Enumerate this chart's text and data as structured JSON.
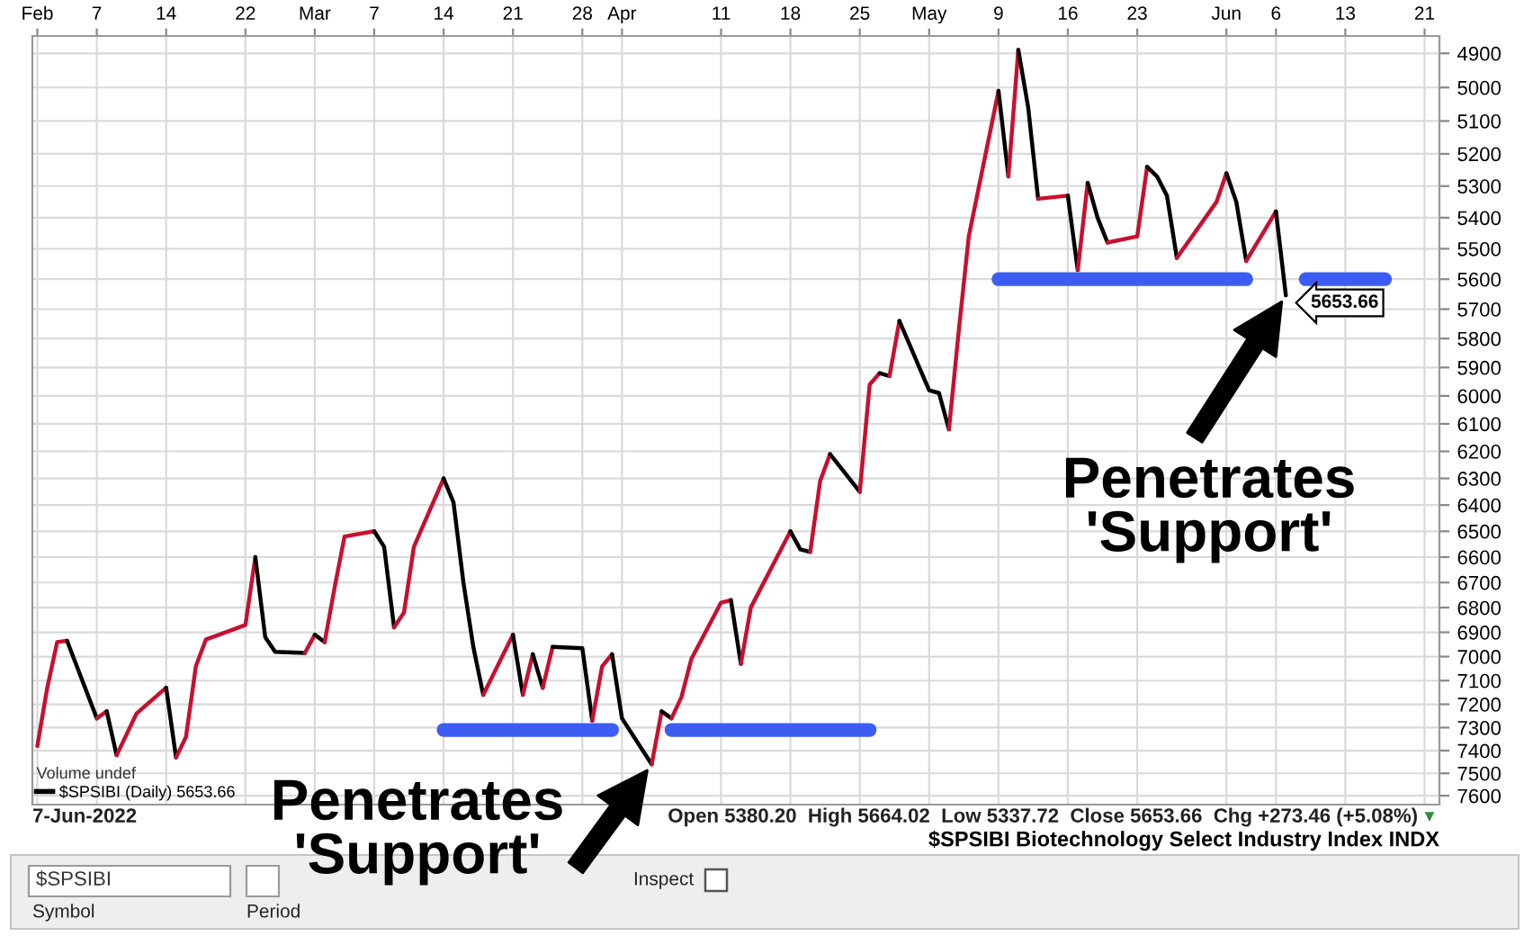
{
  "chart_data": {
    "type": "line",
    "title": "$SPSIBI Biotechnology Select Industry Index INDX",
    "xlim": [
      "2022-01-31T12:00",
      "2022-06-22T12:00"
    ],
    "xticks": [
      {
        "value": "2022-02-01",
        "label": "Feb"
      },
      {
        "value": "2022-02-07",
        "label": "7"
      },
      {
        "value": "2022-02-14",
        "label": "14"
      },
      {
        "value": "2022-02-22",
        "label": "22"
      },
      {
        "value": "2022-03-01",
        "label": "Mar"
      },
      {
        "value": "2022-03-07",
        "label": "7"
      },
      {
        "value": "2022-03-14",
        "label": "14"
      },
      {
        "value": "2022-03-21",
        "label": "21"
      },
      {
        "value": "2022-03-28",
        "label": "28"
      },
      {
        "value": "2022-04-01",
        "label": "Apr"
      },
      {
        "value": "2022-04-11",
        "label": "11"
      },
      {
        "value": "2022-04-18",
        "label": "18"
      },
      {
        "value": "2022-04-25",
        "label": "25"
      },
      {
        "value": "2022-05-02",
        "label": "May"
      },
      {
        "value": "2022-05-09",
        "label": "9"
      },
      {
        "value": "2022-05-16",
        "label": "16"
      },
      {
        "value": "2022-05-23",
        "label": "23"
      },
      {
        "value": "2022-06-01",
        "label": "Jun"
      },
      {
        "value": "2022-06-06",
        "label": "6"
      },
      {
        "value": "2022-06-13",
        "label": "13"
      },
      {
        "value": "2022-06-21",
        "label": "21"
      }
    ],
    "series": [
      {
        "color": "#c8102e",
        "x": [
          "2022-02-01",
          "2022-02-02",
          "2022-02-03",
          "2022-02-04"
        ],
        "values": [
          7380,
          7130,
          6940,
          6935
        ]
      },
      {
        "name": "$SPSIBI (Daily) 5653.66",
        "color": "#000000",
        "x": [
          "2022-02-04",
          "2022-02-07"
        ],
        "values": [
          6935,
          7260
        ]
      },
      {
        "color": "#c8102e",
        "x": [
          "2022-02-07",
          "2022-02-08"
        ],
        "values": [
          7260,
          7230
        ]
      },
      {
        "color": "#000000",
        "x": [
          "2022-02-08",
          "2022-02-09"
        ],
        "values": [
          7230,
          7420
        ]
      },
      {
        "color": "#c8102e",
        "x": [
          "2022-02-09",
          "2022-02-10",
          "2022-02-11",
          "2022-02-14"
        ],
        "values": [
          7420,
          7330,
          7240,
          7130
        ]
      },
      {
        "color": "#000000",
        "x": [
          "2022-02-14",
          "2022-02-15"
        ],
        "values": [
          7130,
          7430
        ]
      },
      {
        "color": "#c8102e",
        "x": [
          "2022-02-15",
          "2022-02-16",
          "2022-02-17",
          "2022-02-18",
          "2022-02-22",
          "2022-02-23"
        ],
        "values": [
          7430,
          7340,
          7040,
          6930,
          6870,
          6600
        ]
      },
      {
        "color": "#000000",
        "x": [
          "2022-02-23",
          "2022-02-24",
          "2022-02-25",
          "2022-02-28"
        ],
        "values": [
          6600,
          6920,
          6980,
          6985
        ]
      },
      {
        "color": "#c8102e",
        "x": [
          "2022-02-28",
          "2022-03-01"
        ],
        "values": [
          6985,
          6910
        ]
      },
      {
        "color": "#000000",
        "x": [
          "2022-03-01",
          "2022-03-02"
        ],
        "values": [
          6910,
          6940
        ]
      },
      {
        "color": "#c8102e",
        "x": [
          "2022-03-02",
          "2022-03-03",
          "2022-03-04",
          "2022-03-07"
        ],
        "values": [
          6940,
          6720,
          6520,
          6500
        ]
      },
      {
        "color": "#000000",
        "x": [
          "2022-03-07",
          "2022-03-08",
          "2022-03-09"
        ],
        "values": [
          6500,
          6560,
          6880
        ]
      },
      {
        "color": "#c8102e",
        "x": [
          "2022-03-09",
          "2022-03-10",
          "2022-03-11",
          "2022-03-14"
        ],
        "values": [
          6880,
          6820,
          6560,
          6300
        ]
      },
      {
        "color": "#000000",
        "x": [
          "2022-03-14",
          "2022-03-15",
          "2022-03-16",
          "2022-03-17",
          "2022-03-18"
        ],
        "values": [
          6300,
          6390,
          6700,
          6960,
          7160
        ]
      },
      {
        "color": "#c8102e",
        "x": [
          "2022-03-18",
          "2022-03-21"
        ],
        "values": [
          7160,
          6910
        ]
      },
      {
        "color": "#000000",
        "x": [
          "2022-03-21",
          "2022-03-22"
        ],
        "values": [
          6910,
          7160
        ]
      },
      {
        "color": "#c8102e",
        "x": [
          "2022-03-22",
          "2022-03-23"
        ],
        "values": [
          7160,
          6990
        ]
      },
      {
        "color": "#000000",
        "x": [
          "2022-03-23",
          "2022-03-24"
        ],
        "values": [
          6990,
          7130
        ]
      },
      {
        "color": "#c8102e",
        "x": [
          "2022-03-24",
          "2022-03-25"
        ],
        "values": [
          7130,
          6960
        ]
      },
      {
        "color": "#000000",
        "x": [
          "2022-03-25",
          "2022-03-28",
          "2022-03-29"
        ],
        "values": [
          6960,
          6965,
          7270
        ]
      },
      {
        "color": "#c8102e",
        "x": [
          "2022-03-29",
          "2022-03-30",
          "2022-03-31"
        ],
        "values": [
          7270,
          7040,
          6990
        ]
      },
      {
        "color": "#000000",
        "x": [
          "2022-03-31",
          "2022-04-01",
          "2022-04-04"
        ],
        "values": [
          6990,
          7260,
          7460
        ]
      },
      {
        "color": "#c8102e",
        "x": [
          "2022-04-04",
          "2022-04-05"
        ],
        "values": [
          7460,
          7230
        ]
      },
      {
        "color": "#000000",
        "x": [
          "2022-04-05",
          "2022-04-06"
        ],
        "values": [
          7230,
          7260
        ]
      },
      {
        "color": "#c8102e",
        "x": [
          "2022-04-06",
          "2022-04-07",
          "2022-04-08",
          "2022-04-11",
          "2022-04-12"
        ],
        "values": [
          7260,
          7170,
          7010,
          6780,
          6770
        ]
      },
      {
        "color": "#000000",
        "x": [
          "2022-04-12",
          "2022-04-13"
        ],
        "values": [
          6770,
          7030
        ]
      },
      {
        "color": "#c8102e",
        "x": [
          "2022-04-13",
          "2022-04-14",
          "2022-04-18"
        ],
        "values": [
          7030,
          6800,
          6500
        ]
      },
      {
        "color": "#000000",
        "x": [
          "2022-04-18",
          "2022-04-19",
          "2022-04-20"
        ],
        "values": [
          6500,
          6570,
          6580
        ]
      },
      {
        "color": "#c8102e",
        "x": [
          "2022-04-20",
          "2022-04-21",
          "2022-04-22"
        ],
        "values": [
          6580,
          6310,
          6210
        ]
      },
      {
        "color": "#000000",
        "x": [
          "2022-04-22",
          "2022-04-25"
        ],
        "values": [
          6210,
          6350
        ]
      },
      {
        "color": "#c8102e",
        "x": [
          "2022-04-25",
          "2022-04-26",
          "2022-04-27"
        ],
        "values": [
          6350,
          5960,
          5920
        ]
      },
      {
        "color": "#000000",
        "x": [
          "2022-04-27",
          "2022-04-28"
        ],
        "values": [
          5920,
          5930
        ]
      },
      {
        "color": "#c8102e",
        "x": [
          "2022-04-28",
          "2022-04-29"
        ],
        "values": [
          5930,
          5740
        ]
      },
      {
        "color": "#000000",
        "x": [
          "2022-04-29",
          "2022-05-02",
          "2022-05-03",
          "2022-05-04"
        ],
        "values": [
          5740,
          5980,
          5990,
          6120
        ]
      },
      {
        "color": "#c8102e",
        "x": [
          "2022-05-04",
          "2022-05-05",
          "2022-05-06",
          "2022-05-09"
        ],
        "values": [
          6120,
          5770,
          5460,
          5010
        ]
      },
      {
        "color": "#000000",
        "x": [
          "2022-05-09",
          "2022-05-10"
        ],
        "values": [
          5010,
          5270
        ]
      },
      {
        "color": "#c8102e",
        "x": [
          "2022-05-10",
          "2022-05-11"
        ],
        "values": [
          5270,
          4890
        ]
      },
      {
        "color": "#000000",
        "x": [
          "2022-05-11",
          "2022-05-12",
          "2022-05-13"
        ],
        "values": [
          4890,
          5060,
          5340
        ]
      },
      {
        "color": "#c8102e",
        "x": [
          "2022-05-13",
          "2022-05-16"
        ],
        "values": [
          5340,
          5330
        ]
      },
      {
        "color": "#000000",
        "x": [
          "2022-05-16",
          "2022-05-17"
        ],
        "values": [
          5330,
          5570
        ]
      },
      {
        "color": "#c8102e",
        "x": [
          "2022-05-17",
          "2022-05-18"
        ],
        "values": [
          5570,
          5290
        ]
      },
      {
        "color": "#000000",
        "x": [
          "2022-05-18",
          "2022-05-19",
          "2022-05-20"
        ],
        "values": [
          5290,
          5400,
          5480
        ]
      },
      {
        "color": "#c8102e",
        "x": [
          "2022-05-20",
          "2022-05-23",
          "2022-05-24"
        ],
        "values": [
          5480,
          5460,
          5240
        ]
      },
      {
        "color": "#000000",
        "x": [
          "2022-05-24",
          "2022-05-25",
          "2022-05-26",
          "2022-05-27"
        ],
        "values": [
          5240,
          5270,
          5330,
          5530
        ]
      },
      {
        "color": "#c8102e",
        "x": [
          "2022-05-27",
          "2022-05-31",
          "2022-06-01"
        ],
        "values": [
          5530,
          5350,
          5260
        ]
      },
      {
        "color": "#000000",
        "x": [
          "2022-06-01",
          "2022-06-02",
          "2022-06-03"
        ],
        "values": [
          5260,
          5350,
          5540
        ]
      },
      {
        "color": "#c8102e",
        "x": [
          "2022-06-03",
          "2022-06-06"
        ],
        "values": [
          5540,
          5380.2
        ]
      },
      {
        "color": "#000000",
        "x": [
          "2022-06-06",
          "2022-06-07"
        ],
        "values": [
          5380.2,
          5653.66
        ],
        "value_labels": [
          null,
          "5653.66"
        ]
      },
      {
        "color": "#3d5cf2",
        "x": [
          "2022-03-14",
          "2022-03-31"
        ],
        "values": [
          7310,
          7310
        ]
      },
      {
        "color": "#3d5cf2",
        "x": [
          "2022-04-06",
          "2022-04-26"
        ],
        "values": [
          7310,
          7310
        ]
      },
      {
        "color": "#3d5cf2",
        "x": [
          "2022-05-09",
          "2022-06-03"
        ],
        "values": [
          5600,
          5600
        ]
      },
      {
        "color": "#3d5cf2",
        "x": [
          "2022-06-09",
          "2022-06-17"
        ],
        "values": [
          5600,
          5600
        ]
      }
    ],
    "log": true,
    "ylim": [
      7640,
      4850
    ],
    "yticks": [
      4900,
      5000,
      5100,
      5200,
      5300,
      5400,
      5500,
      5600,
      5700,
      5800,
      5900,
      6000,
      6100,
      6200,
      6300,
      6400,
      6500,
      6600,
      6700,
      6800,
      6900,
      7000,
      7100,
      7200,
      7300,
      7400,
      7500,
      7600
    ],
    "grid": true,
    "legend": "bottom left",
    "legend_title": "Volume undef",
    "annotations": [
      {
        "text": "Penetrates\n'Support'",
        "x": "2022-04-04",
        "y": 7460
      },
      {
        "text": "Penetrates\n'Support'",
        "x": "2022-06-07",
        "y": 5653.66
      },
      "7-Jun-2022",
      "Open 5380.20  High 5664.02  Low 5337.72  Close 5653.66  Chg +273.46 (+5.08%)",
      "▼",
      "$SPSIBI",
      "Symbol",
      "Period",
      "Inspect"
    ]
  }
}
